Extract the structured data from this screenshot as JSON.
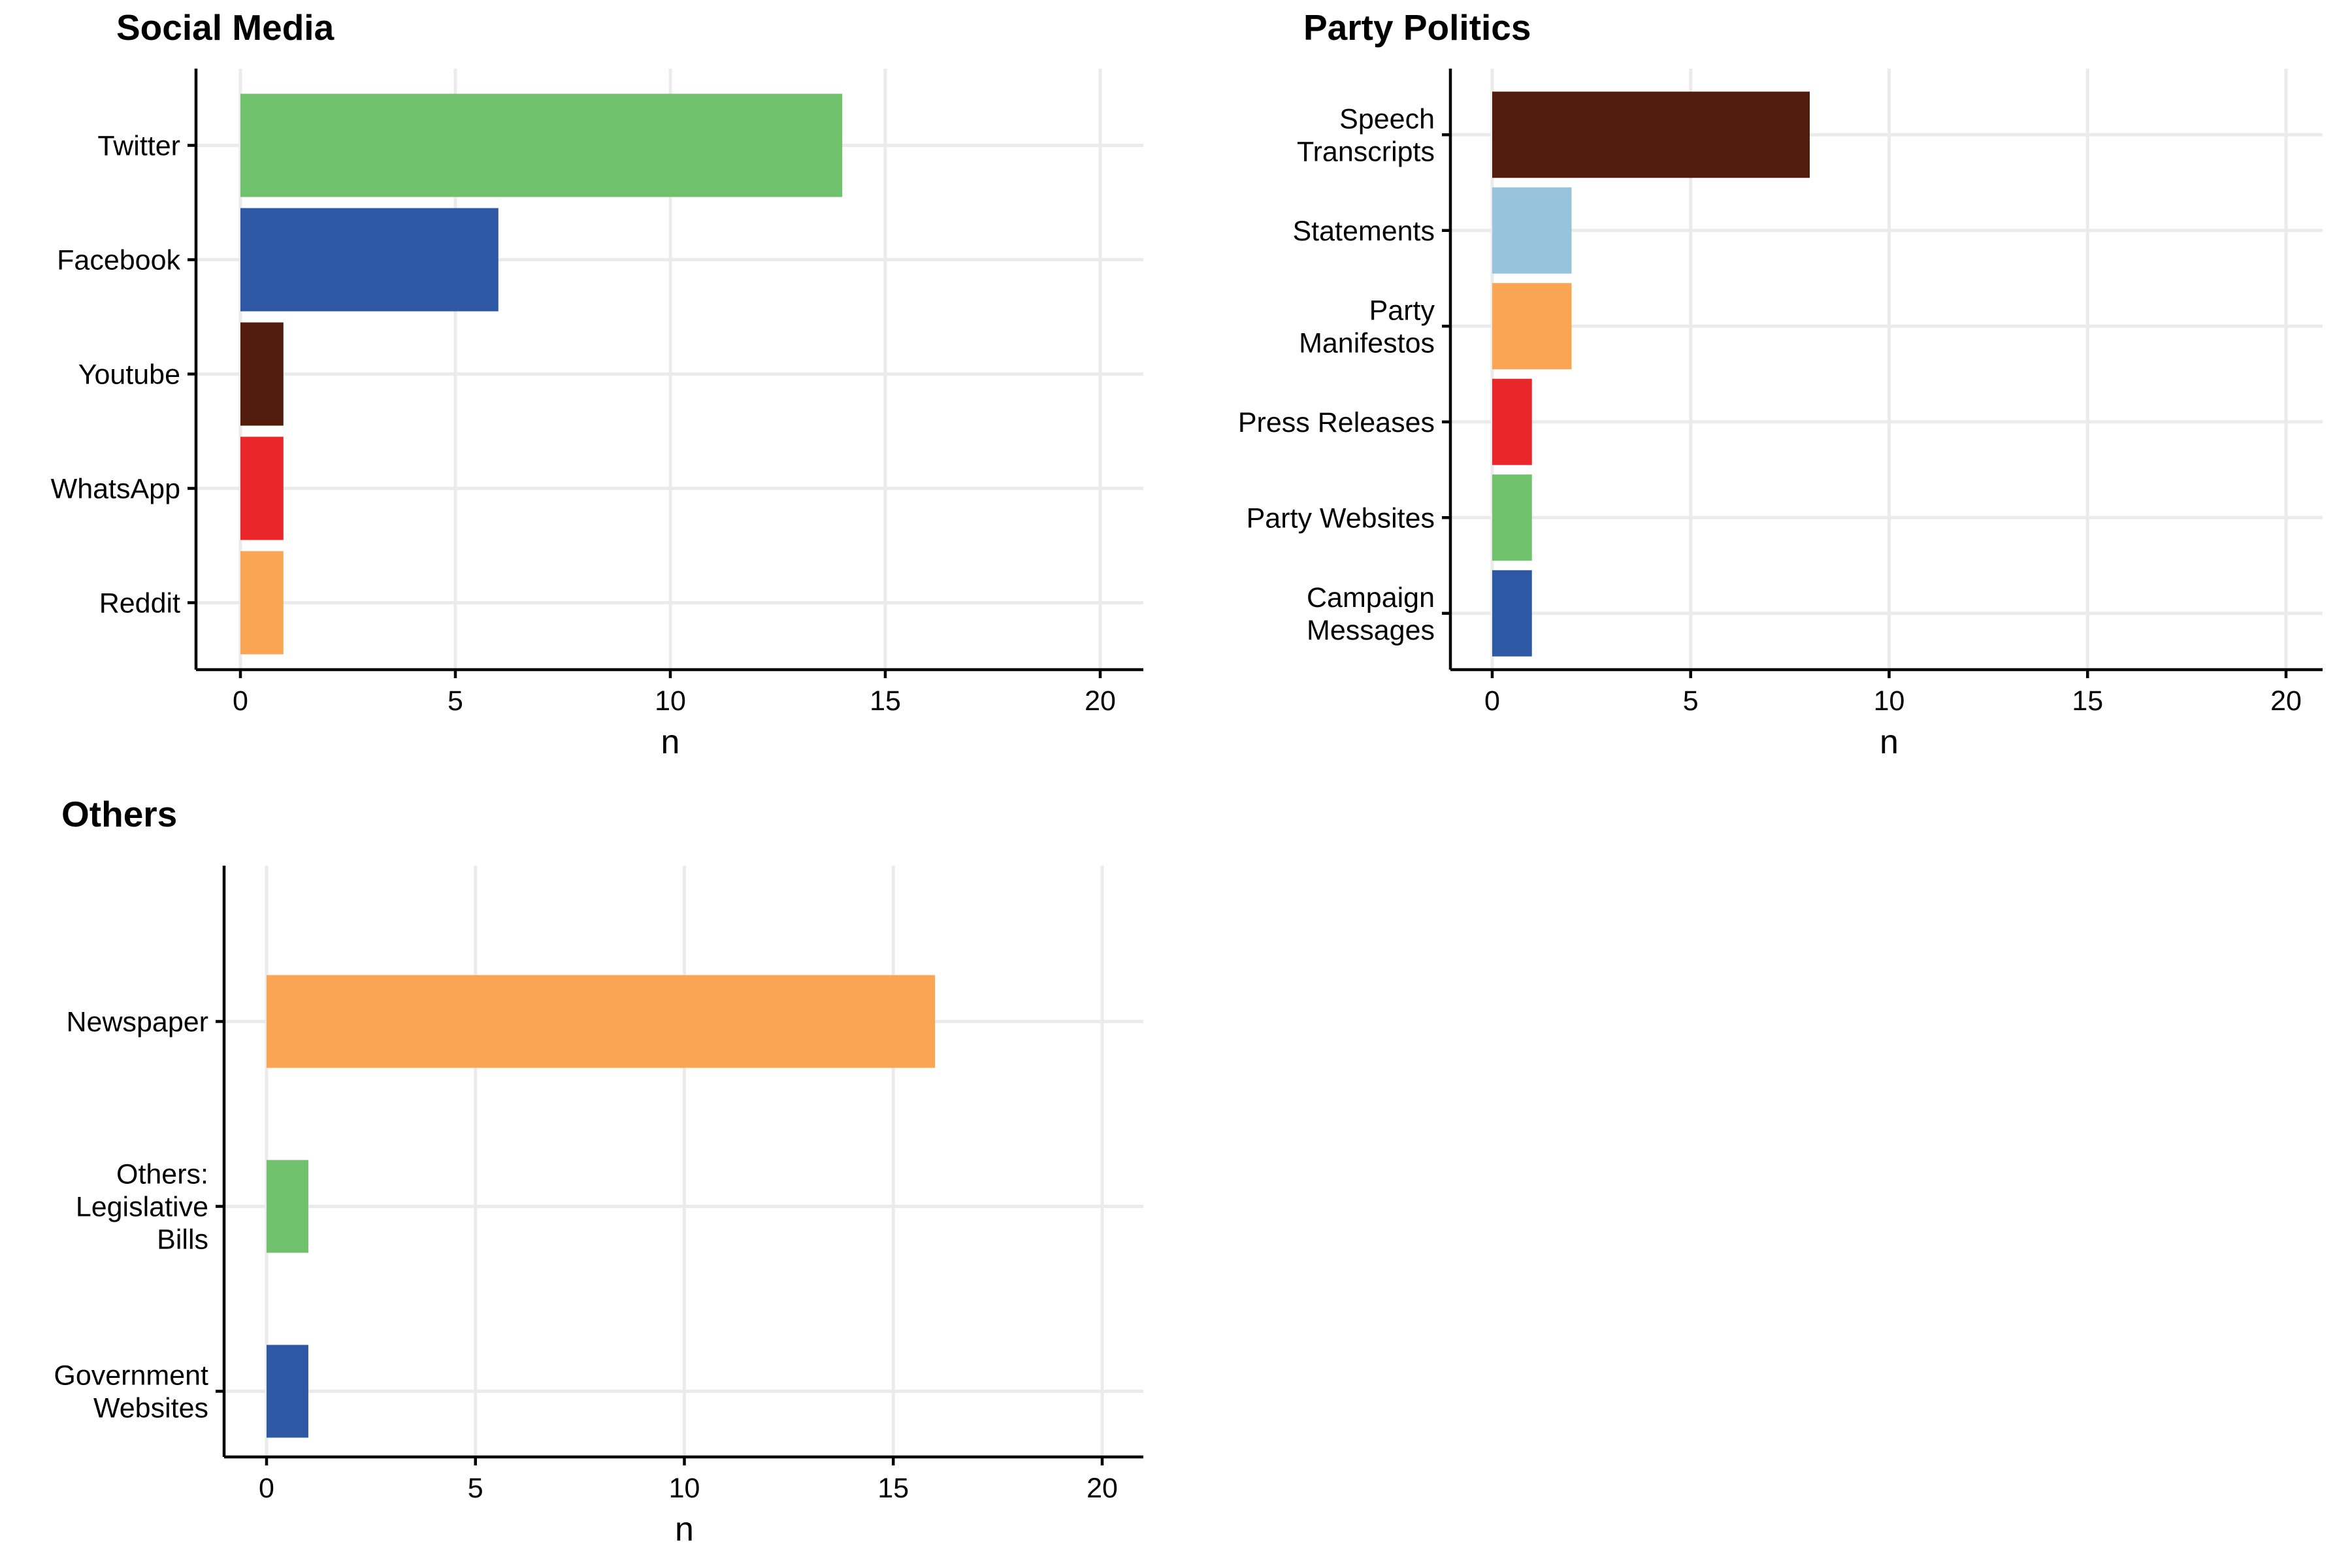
{
  "chart_data": [
    {
      "type": "bar",
      "orientation": "horizontal",
      "title": "Social Media",
      "xlabel": "n",
      "ylabel": "",
      "xlim": [
        0,
        20
      ],
      "xticks": [
        "0",
        "5",
        "10",
        "15",
        "20"
      ],
      "grid": true,
      "categories": [
        "Twitter",
        "Facebook",
        "Youtube",
        "WhatsApp",
        "Reddit"
      ],
      "values": [
        14,
        6,
        1,
        1,
        1
      ],
      "colors": [
        "#6fc16c",
        "#2e58a4",
        "#521c0d",
        "#e9262a",
        "#faa553"
      ]
    },
    {
      "type": "bar",
      "orientation": "horizontal",
      "title": "Party Politics",
      "xlabel": "n",
      "ylabel": "",
      "xlim": [
        0,
        20
      ],
      "xticks": [
        "0",
        "5",
        "10",
        "15",
        "20"
      ],
      "grid": true,
      "categories": [
        "Speech\nTranscripts",
        "Statements",
        "Party\nManifestos",
        "Press Releases",
        "Party Websites",
        "Campaign\nMessages"
      ],
      "values": [
        8,
        2,
        2,
        1,
        1,
        1
      ],
      "colors": [
        "#521c0d",
        "#97c3dc",
        "#faa553",
        "#e9262a",
        "#6fc16c",
        "#2e58a4"
      ]
    },
    {
      "type": "bar",
      "orientation": "horizontal",
      "title": "Others",
      "xlabel": "n",
      "ylabel": "",
      "xlim": [
        0,
        20
      ],
      "xticks": [
        "0",
        "5",
        "10",
        "15",
        "20"
      ],
      "grid": true,
      "categories": [
        "Newspaper",
        "Others:\nLegislative\nBills",
        "Government\nWebsites"
      ],
      "values": [
        16,
        1,
        1
      ],
      "colors": [
        "#faa553",
        "#6fc16c",
        "#2e58a4"
      ]
    }
  ]
}
